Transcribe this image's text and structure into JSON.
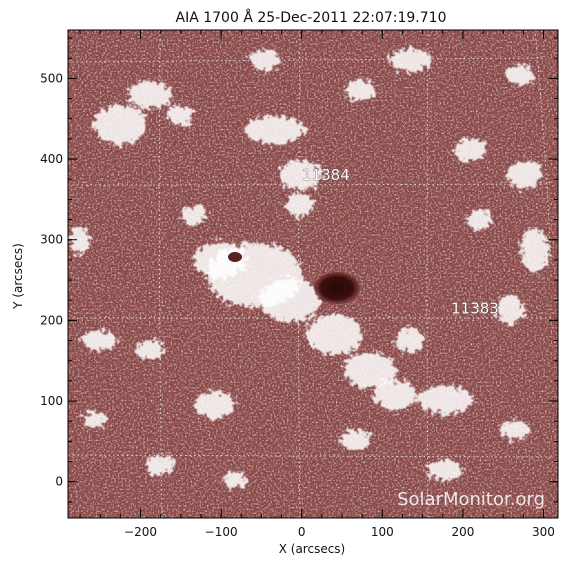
{
  "figure": {
    "title": "AIA 1700 Å 25-Dec-2011 22:07:19.710",
    "xlabel": "X (arcsecs)",
    "ylabel": "Y (arcsecs)",
    "x_ticks": [
      {
        "value": -200,
        "label": "−200"
      },
      {
        "value": -100,
        "label": "−100"
      },
      {
        "value": 0,
        "label": "0"
      },
      {
        "value": 100,
        "label": "100"
      },
      {
        "value": 200,
        "label": "200"
      },
      {
        "value": 300,
        "label": "300"
      }
    ],
    "y_ticks": [
      {
        "value": 0,
        "label": "0"
      },
      {
        "value": 100,
        "label": "100"
      },
      {
        "value": 200,
        "label": "200"
      },
      {
        "value": 300,
        "label": "300"
      },
      {
        "value": 400,
        "label": "400"
      },
      {
        "value": 500,
        "label": "500"
      }
    ],
    "xlim": [
      -290,
      318
    ],
    "ylim": [
      -45,
      560
    ],
    "watermark": "SolarMonitor.org",
    "colors": {
      "background": "#ffffff",
      "solar_base": "#8a4a4a",
      "plage": "#ffffff",
      "sunspot": "#3a0e0e",
      "grid": "#e8e0e0"
    }
  },
  "active_regions": [
    {
      "label": "11384",
      "x": 30,
      "y": 380
    },
    {
      "label": "11383",
      "x": 215,
      "y": 215
    }
  ],
  "sunspots": [
    {
      "name": "main-sunspot",
      "x": 45,
      "y": 240
    },
    {
      "name": "pore",
      "x": -85,
      "y": 278
    }
  ]
}
